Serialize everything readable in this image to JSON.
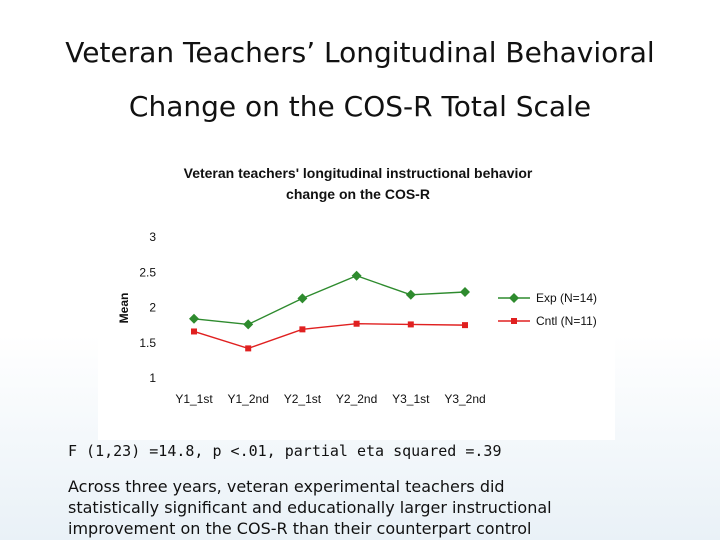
{
  "slide": {
    "title_line1": "Veteran Teachers’ Longitudinal Behavioral",
    "title_line2": "Change on the COS-R Total Scale",
    "stat_line": "F (1,23) =14.8, p <.01, partial eta squared =.39",
    "body_line1": "Across three years, veteran experimental teachers did",
    "body_line2": "statistically significant and educationally larger instructional",
    "body_line3": "improvement on the COS-R than their counterpart control"
  },
  "chart_data": {
    "type": "line",
    "title_line1": "Veteran teachers' longitudinal instructional behavior",
    "title_line2": "change on the COS-R",
    "xlabel": "",
    "ylabel": "Mean",
    "categories": [
      "Y1_1st",
      "Y1_2nd",
      "Y2_1st",
      "Y2_2nd",
      "Y3_1st",
      "Y3_2nd"
    ],
    "ylim": [
      1,
      3
    ],
    "yticks": [
      "1",
      "1.5",
      "2",
      "2.5",
      "3"
    ],
    "ytick_values": [
      1,
      1.5,
      2,
      2.5,
      3
    ],
    "grid": false,
    "legend_position": "right",
    "series": [
      {
        "name": "Exp (N=14)",
        "marker": "diamond",
        "color": "#2e8b2e",
        "values": [
          1.84,
          1.76,
          2.13,
          2.45,
          2.18,
          2.22
        ]
      },
      {
        "name": "Cntl (N=11)",
        "marker": "square",
        "color": "#e02020",
        "values": [
          1.66,
          1.42,
          1.69,
          1.77,
          1.76,
          1.75
        ]
      }
    ]
  }
}
